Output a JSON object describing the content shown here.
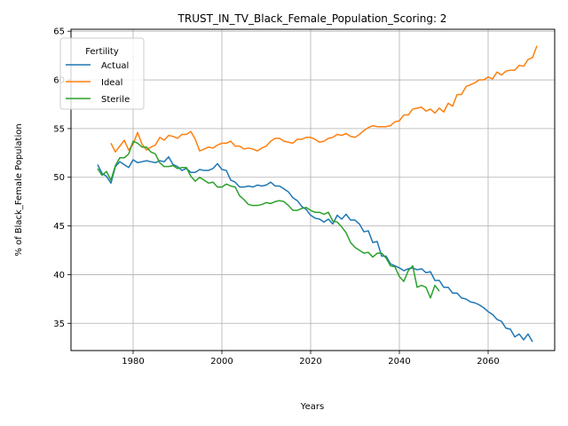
{
  "chart_data": {
    "type": "line",
    "title": "TRUST_IN_TV_Black_Female_Population_Scoring: 2",
    "xlabel": "Years",
    "ylabel": "% of Black_Female Population",
    "xlim": [
      1966,
      2075
    ],
    "ylim": [
      32.2,
      65.2
    ],
    "xticks": [
      1980,
      2000,
      2020,
      2040,
      2060
    ],
    "yticks": [
      35,
      40,
      45,
      50,
      55,
      60,
      65
    ],
    "grid": true,
    "legend": {
      "title": "Fertility",
      "placement": "upper-left"
    },
    "series": [
      {
        "name": "Actual",
        "color": "#1f77b4",
        "points": [
          [
            1972,
            51.3
          ],
          [
            1973,
            50.4
          ],
          [
            1974,
            50.1
          ],
          [
            1975,
            49.4
          ],
          [
            1976,
            51.1
          ],
          [
            1977,
            51.6
          ],
          [
            1978,
            51.3
          ],
          [
            1979,
            51.0
          ],
          [
            1980,
            51.8
          ],
          [
            1981,
            51.5
          ],
          [
            1982,
            51.6
          ],
          [
            1983,
            51.7
          ],
          [
            1984,
            51.6
          ],
          [
            1985,
            51.5
          ],
          [
            1986,
            51.7
          ],
          [
            1987,
            51.6
          ],
          [
            1988,
            52.1
          ],
          [
            1989,
            51.3
          ],
          [
            1990,
            51.1
          ],
          [
            1991,
            50.7
          ],
          [
            1992,
            50.9
          ],
          [
            1993,
            50.5
          ],
          [
            1994,
            50.5
          ],
          [
            1995,
            50.8
          ],
          [
            1996,
            50.7
          ],
          [
            1997,
            50.7
          ],
          [
            1998,
            50.9
          ],
          [
            1999,
            51.4
          ],
          [
            2000,
            50.8
          ],
          [
            2001,
            50.7
          ],
          [
            2002,
            49.7
          ],
          [
            2003,
            49.5
          ],
          [
            2004,
            49.0
          ],
          [
            2005,
            49.0
          ],
          [
            2006,
            49.1
          ],
          [
            2007,
            49.0
          ],
          [
            2008,
            49.2
          ],
          [
            2009,
            49.1
          ],
          [
            2010,
            49.2
          ],
          [
            2011,
            49.5
          ],
          [
            2012,
            49.1
          ],
          [
            2013,
            49.1
          ],
          [
            2014,
            48.8
          ],
          [
            2015,
            48.5
          ],
          [
            2016,
            47.9
          ],
          [
            2017,
            47.6
          ],
          [
            2018,
            47.0
          ],
          [
            2019,
            46.7
          ],
          [
            2020,
            46.1
          ],
          [
            2021,
            45.8
          ],
          [
            2022,
            45.7
          ],
          [
            2023,
            45.4
          ],
          [
            2024,
            45.7
          ],
          [
            2025,
            45.2
          ],
          [
            2026,
            46.1
          ],
          [
            2027,
            45.7
          ],
          [
            2028,
            46.2
          ],
          [
            2029,
            45.6
          ],
          [
            2030,
            45.6
          ],
          [
            2031,
            45.2
          ],
          [
            2032,
            44.4
          ],
          [
            2033,
            44.5
          ],
          [
            2034,
            43.3
          ],
          [
            2035,
            43.4
          ],
          [
            2036,
            41.9
          ],
          [
            2037,
            41.9
          ],
          [
            2038,
            41.1
          ],
          [
            2039,
            40.9
          ],
          [
            2040,
            40.7
          ],
          [
            2041,
            40.4
          ],
          [
            2042,
            40.6
          ],
          [
            2043,
            40.7
          ],
          [
            2044,
            40.5
          ],
          [
            2045,
            40.6
          ],
          [
            2046,
            40.2
          ],
          [
            2047,
            40.3
          ],
          [
            2048,
            39.4
          ],
          [
            2049,
            39.4
          ],
          [
            2050,
            38.7
          ],
          [
            2051,
            38.7
          ],
          [
            2052,
            38.1
          ],
          [
            2053,
            38.1
          ],
          [
            2054,
            37.6
          ],
          [
            2055,
            37.5
          ],
          [
            2056,
            37.2
          ],
          [
            2057,
            37.1
          ],
          [
            2058,
            36.9
          ],
          [
            2059,
            36.6
          ],
          [
            2060,
            36.2
          ],
          [
            2061,
            35.9
          ],
          [
            2062,
            35.4
          ],
          [
            2063,
            35.2
          ],
          [
            2064,
            34.5
          ],
          [
            2065,
            34.4
          ],
          [
            2066,
            33.6
          ],
          [
            2067,
            33.9
          ],
          [
            2068,
            33.3
          ],
          [
            2069,
            33.9
          ],
          [
            2070,
            33.1
          ]
        ]
      },
      {
        "name": "Ideal",
        "color": "#ff7f0e",
        "points": [
          [
            1975,
            53.5
          ],
          [
            1976,
            52.6
          ],
          [
            1977,
            53.2
          ],
          [
            1978,
            53.8
          ],
          [
            1979,
            52.8
          ],
          [
            1980,
            53.4
          ],
          [
            1981,
            54.6
          ],
          [
            1982,
            53.4
          ],
          [
            1983,
            52.8
          ],
          [
            1984,
            53.1
          ],
          [
            1985,
            53.3
          ],
          [
            1986,
            54.1
          ],
          [
            1987,
            53.8
          ],
          [
            1988,
            54.3
          ],
          [
            1989,
            54.2
          ],
          [
            1990,
            54.0
          ],
          [
            1991,
            54.4
          ],
          [
            1992,
            54.4
          ],
          [
            1993,
            54.7
          ],
          [
            1994,
            53.9
          ],
          [
            1995,
            52.7
          ],
          [
            1996,
            52.9
          ],
          [
            1997,
            53.1
          ],
          [
            1998,
            53.0
          ],
          [
            1999,
            53.3
          ],
          [
            2000,
            53.5
          ],
          [
            2001,
            53.5
          ],
          [
            2002,
            53.7
          ],
          [
            2003,
            53.2
          ],
          [
            2004,
            53.2
          ],
          [
            2005,
            52.9
          ],
          [
            2006,
            53.0
          ],
          [
            2007,
            52.9
          ],
          [
            2008,
            52.7
          ],
          [
            2009,
            53.0
          ],
          [
            2010,
            53.2
          ],
          [
            2011,
            53.7
          ],
          [
            2012,
            54.0
          ],
          [
            2013,
            54.0
          ],
          [
            2014,
            53.7
          ],
          [
            2015,
            53.6
          ],
          [
            2016,
            53.5
          ],
          [
            2017,
            53.9
          ],
          [
            2018,
            53.9
          ],
          [
            2019,
            54.1
          ],
          [
            2020,
            54.1
          ],
          [
            2021,
            53.9
          ],
          [
            2022,
            53.6
          ],
          [
            2023,
            53.7
          ],
          [
            2024,
            54.0
          ],
          [
            2025,
            54.1
          ],
          [
            2026,
            54.4
          ],
          [
            2027,
            54.3
          ],
          [
            2028,
            54.5
          ],
          [
            2029,
            54.2
          ],
          [
            2030,
            54.1
          ],
          [
            2031,
            54.4
          ],
          [
            2032,
            54.8
          ],
          [
            2033,
            55.1
          ],
          [
            2034,
            55.3
          ],
          [
            2035,
            55.2
          ],
          [
            2036,
            55.2
          ],
          [
            2037,
            55.2
          ],
          [
            2038,
            55.3
          ],
          [
            2039,
            55.7
          ],
          [
            2040,
            55.8
          ],
          [
            2041,
            56.4
          ],
          [
            2042,
            56.4
          ],
          [
            2043,
            57.0
          ],
          [
            2044,
            57.1
          ],
          [
            2045,
            57.2
          ],
          [
            2046,
            56.8
          ],
          [
            2047,
            57.0
          ],
          [
            2048,
            56.6
          ],
          [
            2049,
            57.1
          ],
          [
            2050,
            56.7
          ],
          [
            2051,
            57.6
          ],
          [
            2052,
            57.3
          ],
          [
            2053,
            58.5
          ],
          [
            2054,
            58.5
          ],
          [
            2055,
            59.3
          ],
          [
            2056,
            59.5
          ],
          [
            2057,
            59.7
          ],
          [
            2058,
            60.0
          ],
          [
            2059,
            60.0
          ],
          [
            2060,
            60.3
          ],
          [
            2061,
            60.1
          ],
          [
            2062,
            60.8
          ],
          [
            2063,
            60.5
          ],
          [
            2064,
            60.9
          ],
          [
            2065,
            61.0
          ],
          [
            2066,
            61.0
          ],
          [
            2067,
            61.5
          ],
          [
            2068,
            61.4
          ],
          [
            2069,
            62.1
          ],
          [
            2070,
            62.3
          ],
          [
            2071,
            63.5
          ]
        ]
      },
      {
        "name": "Sterile",
        "color": "#2ca02c",
        "points": [
          [
            1972,
            50.9
          ],
          [
            1973,
            50.2
          ],
          [
            1974,
            50.6
          ],
          [
            1975,
            49.7
          ],
          [
            1976,
            51.2
          ],
          [
            1977,
            52.0
          ],
          [
            1978,
            52.0
          ],
          [
            1979,
            52.4
          ],
          [
            1980,
            53.7
          ],
          [
            1981,
            53.5
          ],
          [
            1982,
            53.1
          ],
          [
            1983,
            53.1
          ],
          [
            1984,
            52.6
          ],
          [
            1985,
            52.4
          ],
          [
            1986,
            51.5
          ],
          [
            1987,
            51.1
          ],
          [
            1988,
            51.1
          ],
          [
            1989,
            51.2
          ],
          [
            1990,
            50.9
          ],
          [
            1991,
            51.0
          ],
          [
            1992,
            51.0
          ],
          [
            1993,
            50.1
          ],
          [
            1994,
            49.6
          ],
          [
            1995,
            50.0
          ],
          [
            1996,
            49.7
          ],
          [
            1997,
            49.4
          ],
          [
            1998,
            49.5
          ],
          [
            1999,
            49.0
          ],
          [
            2000,
            49.0
          ],
          [
            2001,
            49.3
          ],
          [
            2002,
            49.1
          ],
          [
            2003,
            49.0
          ],
          [
            2004,
            48.1
          ],
          [
            2005,
            47.7
          ],
          [
            2006,
            47.2
          ],
          [
            2007,
            47.1
          ],
          [
            2008,
            47.1
          ],
          [
            2009,
            47.2
          ],
          [
            2010,
            47.4
          ],
          [
            2011,
            47.3
          ],
          [
            2012,
            47.5
          ],
          [
            2013,
            47.6
          ],
          [
            2014,
            47.5
          ],
          [
            2015,
            47.1
          ],
          [
            2016,
            46.6
          ],
          [
            2017,
            46.6
          ],
          [
            2018,
            46.8
          ],
          [
            2019,
            46.9
          ],
          [
            2020,
            46.6
          ],
          [
            2021,
            46.4
          ],
          [
            2022,
            46.4
          ],
          [
            2023,
            46.2
          ],
          [
            2024,
            46.4
          ],
          [
            2025,
            45.5
          ],
          [
            2026,
            45.4
          ],
          [
            2027,
            44.9
          ],
          [
            2028,
            44.3
          ],
          [
            2029,
            43.3
          ],
          [
            2030,
            42.8
          ],
          [
            2031,
            42.5
          ],
          [
            2032,
            42.2
          ],
          [
            2033,
            42.3
          ],
          [
            2034,
            41.8
          ],
          [
            2035,
            42.2
          ],
          [
            2036,
            42.2
          ],
          [
            2037,
            41.7
          ],
          [
            2038,
            40.9
          ],
          [
            2039,
            40.8
          ],
          [
            2040,
            39.8
          ],
          [
            2041,
            39.3
          ],
          [
            2042,
            40.4
          ],
          [
            2043,
            40.9
          ],
          [
            2044,
            38.7
          ],
          [
            2045,
            38.9
          ],
          [
            2046,
            38.7
          ],
          [
            2047,
            37.6
          ],
          [
            2048,
            38.9
          ],
          [
            2049,
            38.3
          ]
        ]
      }
    ]
  }
}
